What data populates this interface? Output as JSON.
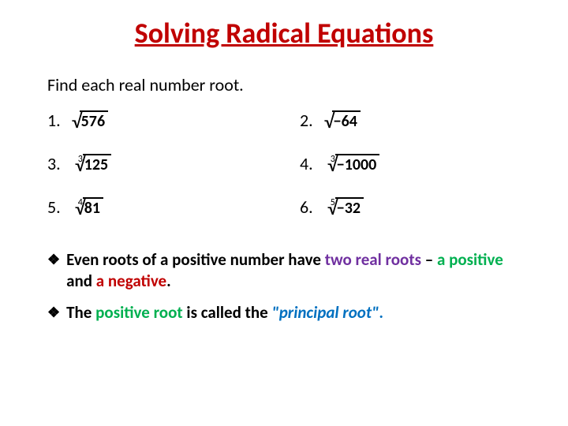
{
  "title": {
    "text": "Solving Radical Equations",
    "color": "#c00000",
    "fontsize": 36
  },
  "instruction": "Find each real number root.",
  "problems": [
    {
      "num": "1.",
      "index": "",
      "radicand": "576"
    },
    {
      "num": "2.",
      "index": "",
      "radicand": "−64"
    },
    {
      "num": "3.",
      "index": "3",
      "radicand": "125"
    },
    {
      "num": "4.",
      "index": "3",
      "radicand": "−1000"
    },
    {
      "num": "5.",
      "index": "4",
      "radicand": "81"
    },
    {
      "num": "6.",
      "index": "5",
      "radicand": "−32"
    }
  ],
  "bullets": [
    {
      "parts": [
        {
          "text": "Even roots of a positive number have ",
          "color": "#000000"
        },
        {
          "text": "two real roots",
          "color": "#7030a0"
        },
        {
          "text": " – ",
          "color": "#000000"
        },
        {
          "text": "a positive",
          "color": "#00b050"
        },
        {
          "text": " and ",
          "color": "#000000"
        },
        {
          "text": "a negative",
          "color": "#c00000"
        },
        {
          "text": ".",
          "color": "#000000"
        }
      ]
    },
    {
      "parts": [
        {
          "text": "The ",
          "color": "#000000"
        },
        {
          "text": "positive root",
          "color": "#00b050"
        },
        {
          "text": " is called the ",
          "color": "#000000"
        },
        {
          "text": "\"principal root\"",
          "color": "#0070c0",
          "italic": true
        },
        {
          "text": ".",
          "color": "#0070c0"
        }
      ]
    }
  ],
  "colors": {
    "title": "#c00000",
    "purple": "#7030a0",
    "green": "#00b050",
    "red": "#c00000",
    "blue": "#0070c0",
    "black": "#000000"
  }
}
